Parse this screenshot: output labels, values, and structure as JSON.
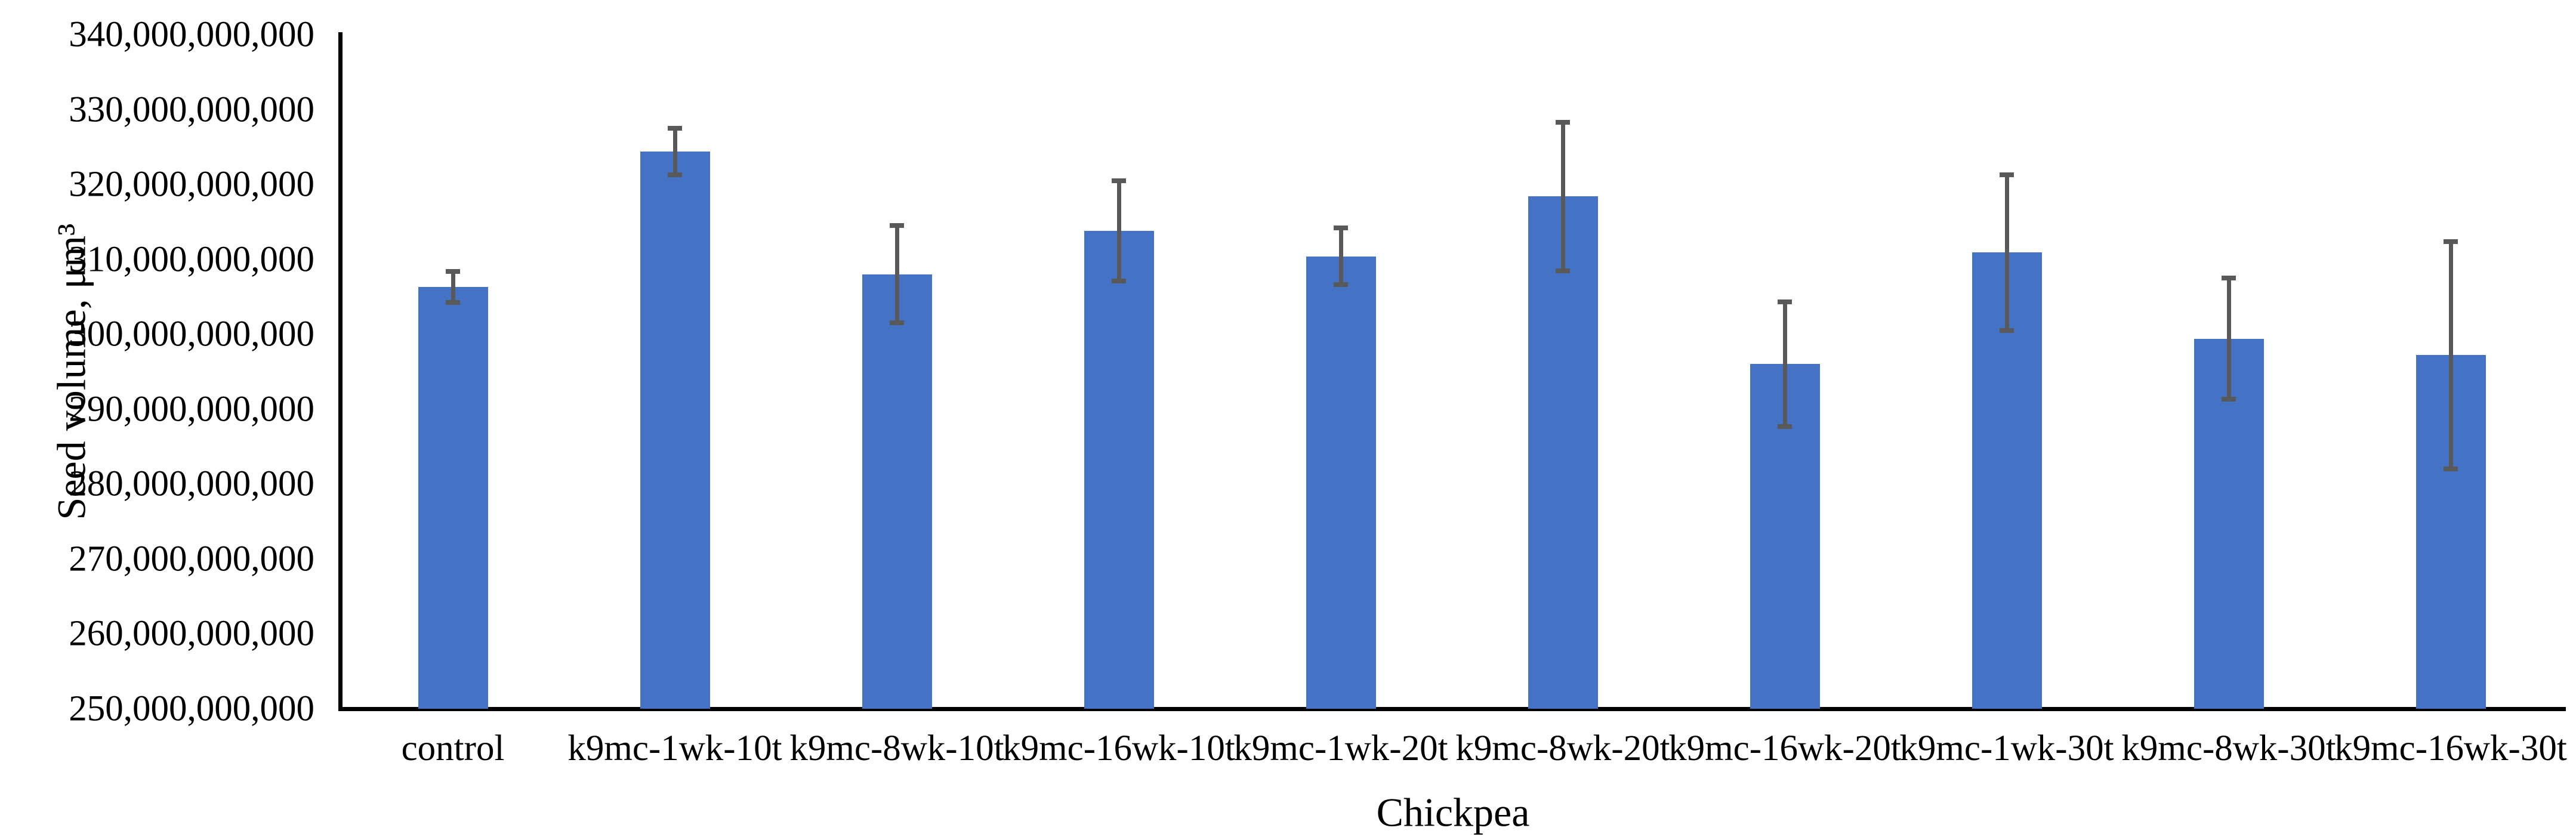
{
  "chart_data": {
    "type": "bar",
    "title": "",
    "xlabel": "Chickpea",
    "ylabel": "Seed volume, μm³",
    "categories": [
      "control",
      "k9mc-1wk-10t",
      "k9mc-8wk-10t",
      "k9mc-16wk-10t",
      "k9mc-1wk-20t",
      "k9mc-8wk-20t",
      "k9mc-16wk-20t",
      "k9mc-1wk-30t",
      "k9mc-8wk-30t",
      "k9mc-16wk-30t"
    ],
    "values": [
      306300000000,
      324400000000,
      308000000000,
      313800000000,
      310400000000,
      318400000000,
      296000000000,
      310900000000,
      299400000000,
      297200000000
    ],
    "errors": [
      2100000000,
      3100000000,
      6500000000,
      6700000000,
      3800000000,
      9900000000,
      8300000000,
      10400000000,
      8100000000,
      15200000000
    ],
    "ylim": [
      250000000000,
      340000000000
    ],
    "ytick_step": 10000000000,
    "ytick_labels": [
      "340,000,000,000",
      "330,000,000,000",
      "320,000,000,000",
      "310,000,000,000",
      "300,000,000,000",
      "290,000,000,000",
      "280,000,000,000",
      "270,000,000,000",
      "260,000,000,000",
      "250,000,000,000"
    ],
    "bar_color": "#4472C4",
    "error_bar_color": "#595959",
    "axis_color": "#000000",
    "grid": false,
    "legend": null
  }
}
